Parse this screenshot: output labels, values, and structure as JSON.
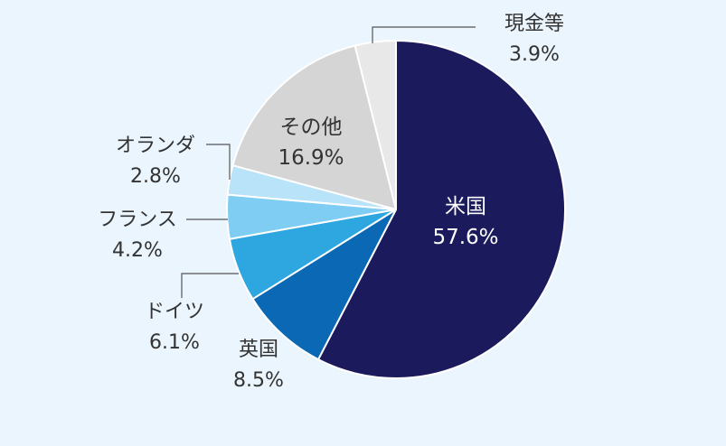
{
  "chart_data": {
    "type": "pie",
    "start": "clockwise from 12 o'clock",
    "slices": [
      {
        "label": "米国",
        "value": 57.6,
        "value_text": "57.6%",
        "color": "#1a1a5c",
        "text_color": "#ffffff"
      },
      {
        "label": "英国",
        "value": 8.5,
        "value_text": "8.5%",
        "color": "#0a68b4",
        "text_color": "#333333"
      },
      {
        "label": "ドイツ",
        "value": 6.1,
        "value_text": "6.1%",
        "color": "#2ea7e0",
        "text_color": "#333333"
      },
      {
        "label": "フランス",
        "value": 4.2,
        "value_text": "4.2%",
        "color": "#7fcdf2",
        "text_color": "#333333"
      },
      {
        "label": "オランダ",
        "value": 2.8,
        "value_text": "2.8%",
        "color": "#b9e3f9",
        "text_color": "#333333"
      },
      {
        "label": "その他",
        "value": 16.9,
        "value_text": "16.9%",
        "color": "#d5d5d5",
        "text_color": "#333333"
      },
      {
        "label": "現金等",
        "value": 3.9,
        "value_text": "3.9%",
        "color": "#e8e8e8",
        "text_color": "#333333"
      }
    ],
    "legend": "none"
  }
}
